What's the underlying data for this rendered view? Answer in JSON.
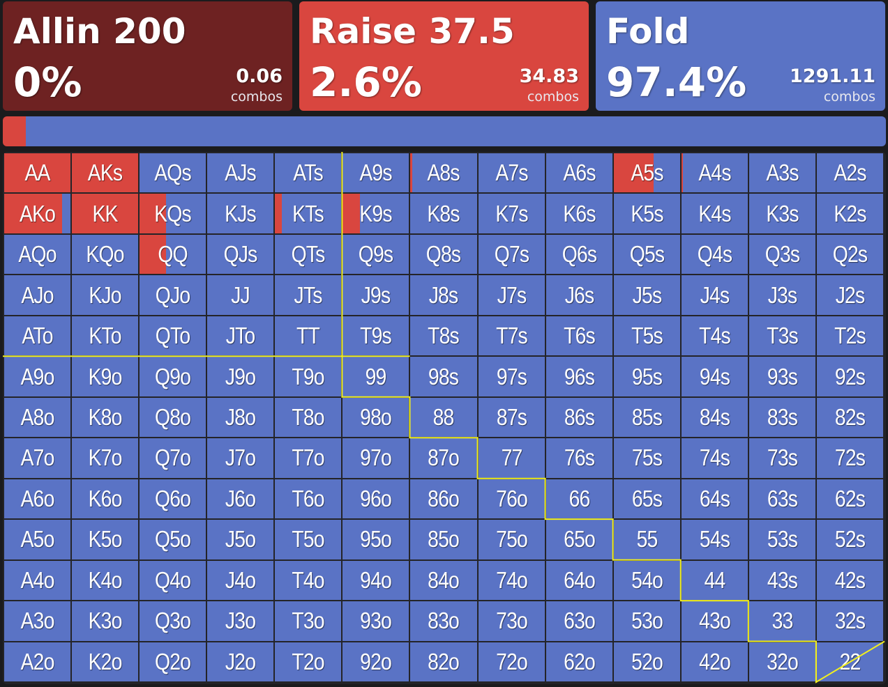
{
  "colors": {
    "allin": "#6e2222",
    "raise": "#d9463f",
    "fold": "#5a73c5",
    "diagonal_line": "#f2ef1e"
  },
  "actions": [
    {
      "key": "allin",
      "name": "Allin 200",
      "pct": "0%",
      "combos": "0.06",
      "combos_label": "combos"
    },
    {
      "key": "raise",
      "name": "Raise 37.5",
      "pct": "2.6%",
      "combos": "34.83",
      "combos_label": "combos"
    },
    {
      "key": "fold",
      "name": "Fold",
      "pct": "97.4%",
      "combos": "1291.11",
      "combos_label": "combos"
    }
  ],
  "frequency_bar": {
    "allin": 0.0,
    "raise": 2.6,
    "fold": 97.4
  },
  "hand_grid": {
    "rows": [
      [
        "AA",
        "AKs",
        "AQs",
        "AJs",
        "ATs",
        "A9s",
        "A8s",
        "A7s",
        "A6s",
        "A5s",
        "A4s",
        "A3s",
        "A2s"
      ],
      [
        "AKo",
        "KK",
        "KQs",
        "KJs",
        "KTs",
        "K9s",
        "K8s",
        "K7s",
        "K6s",
        "K5s",
        "K4s",
        "K3s",
        "K2s"
      ],
      [
        "AQo",
        "KQo",
        "QQ",
        "QJs",
        "QTs",
        "Q9s",
        "Q8s",
        "Q7s",
        "Q6s",
        "Q5s",
        "Q4s",
        "Q3s",
        "Q2s"
      ],
      [
        "AJo",
        "KJo",
        "QJo",
        "JJ",
        "JTs",
        "J9s",
        "J8s",
        "J7s",
        "J6s",
        "J5s",
        "J4s",
        "J3s",
        "J2s"
      ],
      [
        "ATo",
        "KTo",
        "QTo",
        "JTo",
        "TT",
        "T9s",
        "T8s",
        "T7s",
        "T6s",
        "T5s",
        "T4s",
        "T3s",
        "T2s"
      ],
      [
        "A9o",
        "K9o",
        "Q9o",
        "J9o",
        "T9o",
        "99",
        "98s",
        "97s",
        "96s",
        "95s",
        "94s",
        "93s",
        "92s"
      ],
      [
        "A8o",
        "K8o",
        "Q8o",
        "J8o",
        "T8o",
        "98o",
        "88",
        "87s",
        "86s",
        "85s",
        "84s",
        "83s",
        "82s"
      ],
      [
        "A7o",
        "K7o",
        "Q7o",
        "J7o",
        "T7o",
        "97o",
        "87o",
        "77",
        "76s",
        "75s",
        "74s",
        "73s",
        "72s"
      ],
      [
        "A6o",
        "K6o",
        "Q6o",
        "J6o",
        "T6o",
        "96o",
        "86o",
        "76o",
        "66",
        "65s",
        "64s",
        "63s",
        "62s"
      ],
      [
        "A5o",
        "K5o",
        "Q5o",
        "J5o",
        "T5o",
        "95o",
        "85o",
        "75o",
        "65o",
        "55",
        "54s",
        "53s",
        "52s"
      ],
      [
        "A4o",
        "K4o",
        "Q4o",
        "J4o",
        "T4o",
        "94o",
        "84o",
        "74o",
        "64o",
        "54o",
        "44",
        "43s",
        "42s"
      ],
      [
        "A3o",
        "K3o",
        "Q3o",
        "J3o",
        "T3o",
        "93o",
        "83o",
        "73o",
        "63o",
        "53o",
        "43o",
        "33",
        "32s"
      ],
      [
        "A2o",
        "K2o",
        "Q2o",
        "J2o",
        "T2o",
        "92o",
        "82o",
        "72o",
        "62o",
        "52o",
        "42o",
        "32o",
        "22"
      ]
    ],
    "raise_freq": {
      "AA": 1.0,
      "AKs": 1.0,
      "A9s": 0.0,
      "A8s": 0.03,
      "A5s": 0.6,
      "A4s": 0.02,
      "AKo": 0.87,
      "KK": 1.0,
      "KQs": 0.4,
      "KTs": 0.1,
      "K9s": 0.26,
      "QQ": 0.4,
      "K8s": 0.0,
      "K7s": 0.0
    },
    "default_action": "fold"
  }
}
